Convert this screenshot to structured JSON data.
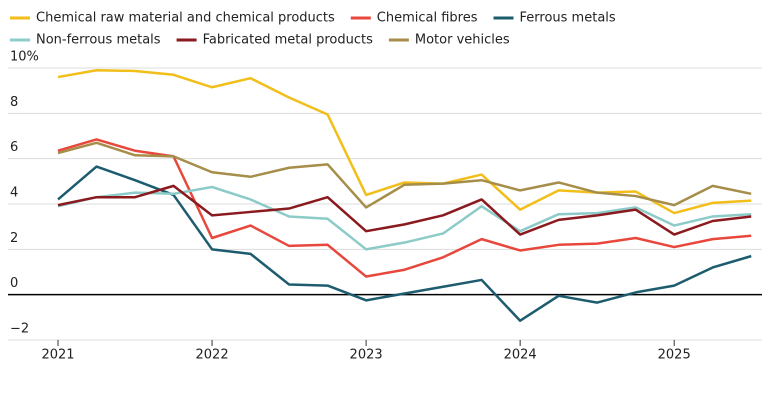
{
  "chart_data": {
    "type": "line",
    "x": [
      2021,
      2021.25,
      2021.5,
      2021.75,
      2022,
      2022.25,
      2022.5,
      2022.75,
      2023,
      2023.25,
      2023.5,
      2023.75,
      2024,
      2024.25,
      2024.5,
      2024.75,
      2025,
      2025.25,
      2025.5
    ],
    "xlim": [
      2021,
      2025.57
    ],
    "xticks": [
      2021,
      2022,
      2023,
      2024,
      2025
    ],
    "ylim": [
      -2,
      10
    ],
    "yticks": [
      {
        "value": -2,
        "label": "−2"
      },
      0,
      2,
      4,
      6,
      8,
      {
        "value": 10,
        "label": "10%"
      }
    ],
    "grid": true,
    "series": [
      {
        "name": "Chemical raw material and chemical products",
        "color": "#f2be1a",
        "values": [
          9.6,
          9.9,
          9.87,
          9.7,
          9.15,
          9.55,
          8.7,
          7.95,
          4.4,
          4.95,
          4.9,
          5.3,
          3.75,
          4.6,
          4.5,
          4.55,
          3.6,
          4.05,
          4.15
        ]
      },
      {
        "name": "Chemical fibres",
        "color": "#e8473c",
        "values": [
          6.35,
          6.85,
          6.35,
          6.1,
          2.5,
          3.05,
          2.15,
          2.2,
          0.8,
          1.1,
          1.65,
          2.45,
          1.95,
          2.2,
          2.25,
          2.5,
          2.1,
          2.45,
          2.6
        ]
      },
      {
        "name": "Ferrous metals",
        "color": "#1d5c6e",
        "values": [
          4.2,
          5.65,
          5.05,
          4.4,
          2.0,
          1.8,
          0.45,
          0.4,
          -0.25,
          0.05,
          0.35,
          0.65,
          -1.15,
          -0.05,
          -0.35,
          0.1,
          0.4,
          1.2,
          1.7
        ]
      },
      {
        "name": "Non-ferrous metals",
        "color": "#8ccbc8",
        "values": [
          3.9,
          4.3,
          4.5,
          4.45,
          4.75,
          4.2,
          3.45,
          3.35,
          2.0,
          2.3,
          2.7,
          3.9,
          2.8,
          3.55,
          3.6,
          3.85,
          3.05,
          3.45,
          3.55
        ]
      },
      {
        "name": "Fabricated metal products",
        "color": "#8b1a1f",
        "values": [
          3.95,
          4.3,
          4.3,
          4.8,
          3.5,
          3.65,
          3.8,
          4.3,
          2.8,
          3.1,
          3.5,
          4.2,
          2.65,
          3.3,
          3.5,
          3.75,
          2.65,
          3.25,
          3.45
        ]
      },
      {
        "name": "Motor vehicles",
        "color": "#a68e4a",
        "values": [
          6.25,
          6.7,
          6.15,
          6.1,
          5.4,
          5.2,
          5.6,
          5.75,
          3.85,
          4.85,
          4.9,
          5.05,
          4.6,
          4.95,
          4.5,
          4.35,
          3.95,
          4.8,
          4.45
        ]
      }
    ]
  }
}
